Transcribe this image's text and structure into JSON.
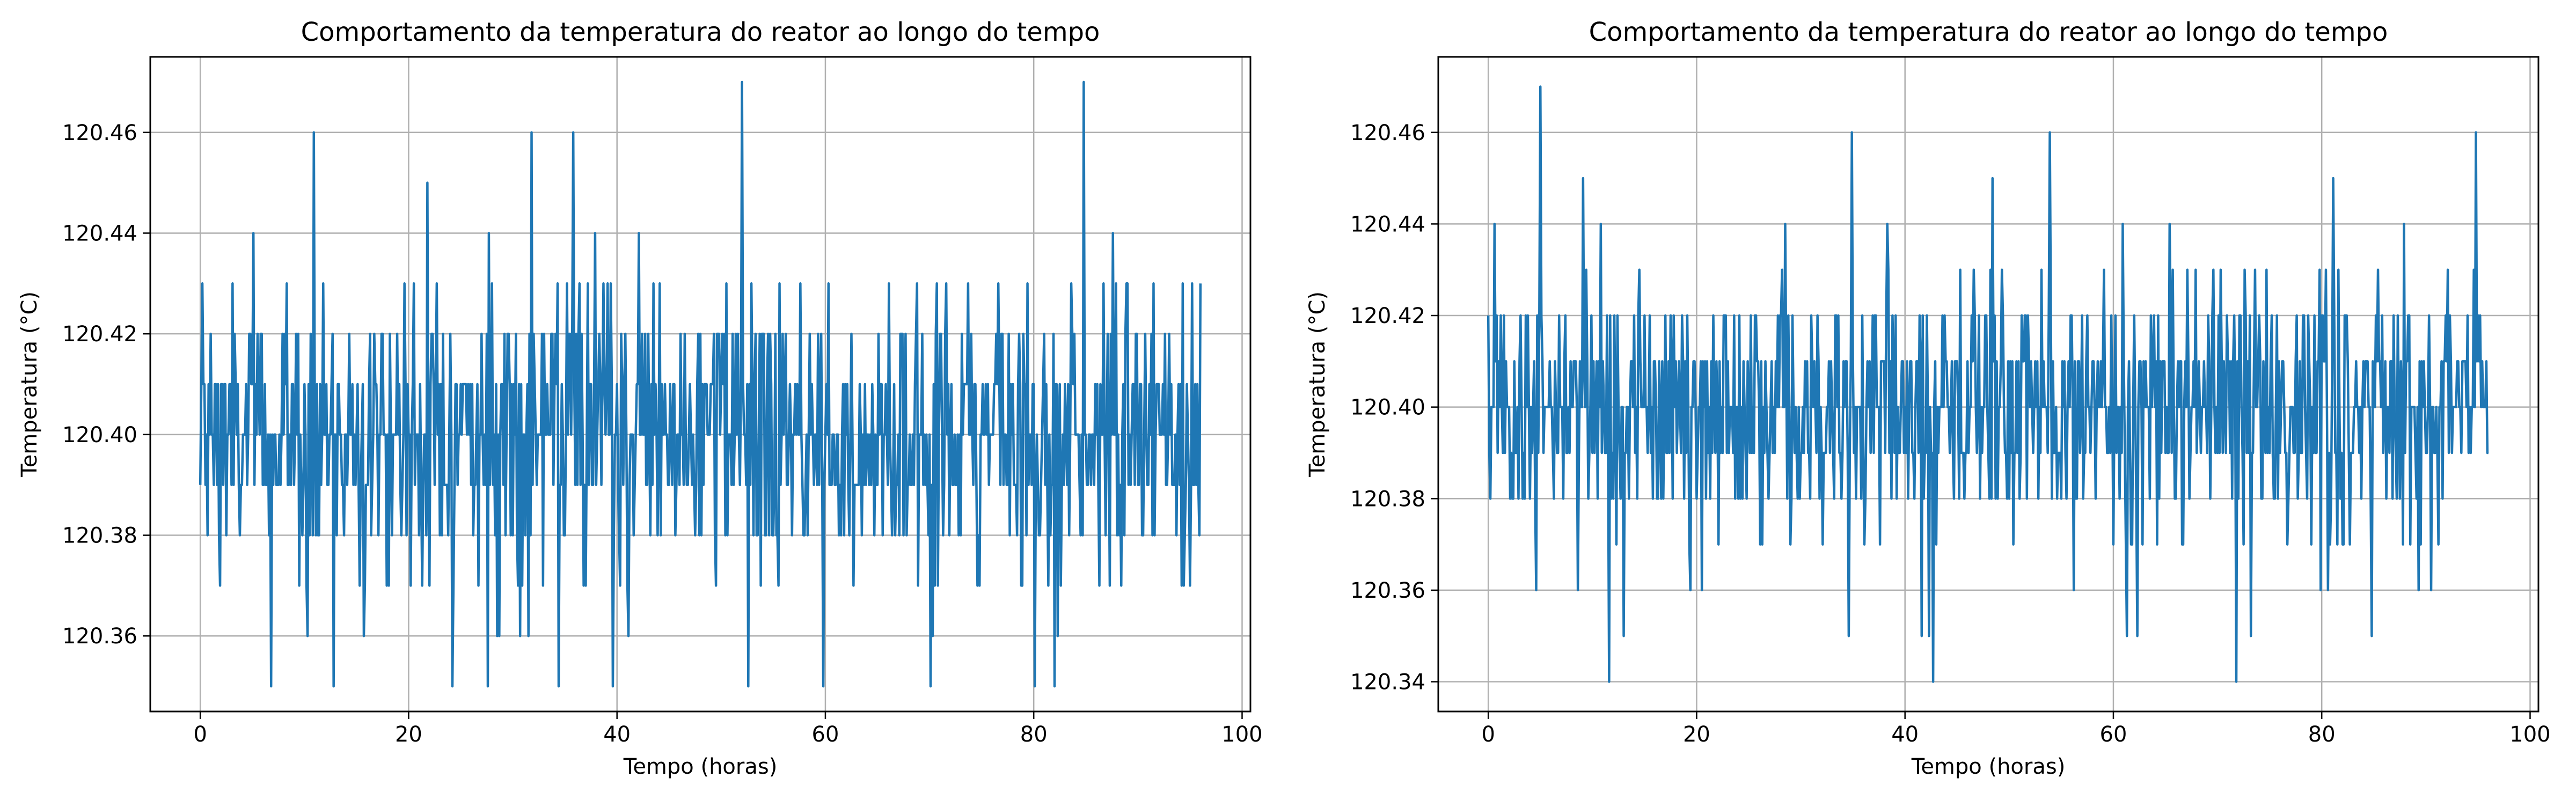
{
  "chart_data": [
    {
      "type": "line",
      "title": "Comportamento da temperatura do reator ao longo do tempo",
      "xlabel": "Tempo (horas)",
      "ylabel": "Temperatura (°C)",
      "xlim": [
        -4.8,
        100.8
      ],
      "ylim": [
        120.345,
        120.475
      ],
      "xticks": [
        0,
        20,
        40,
        60,
        80,
        100
      ],
      "xtick_labels": [
        "0",
        "20",
        "40",
        "60",
        "80",
        "100"
      ],
      "yticks": [
        120.36,
        120.38,
        120.4,
        120.42,
        120.44,
        120.46
      ],
      "ytick_labels": [
        "120.36",
        "120.38",
        "120.40",
        "120.42",
        "120.44",
        "120.46"
      ],
      "grid": true,
      "line_color": "#1f77b4",
      "x_range": [
        0,
        96
      ],
      "sample_step_hours": 0.1,
      "series": [
        {
          "name": "",
          "mean": 120.4,
          "min": 120.35,
          "max": 120.47,
          "peaks": [
            {
              "x": 10.9,
              "y": 120.46
            },
            {
              "x": 21.8,
              "y": 120.45
            },
            {
              "x": 31.8,
              "y": 120.46
            },
            {
              "x": 35.8,
              "y": 120.46
            },
            {
              "x": 52.0,
              "y": 120.47
            },
            {
              "x": 84.8,
              "y": 120.47
            },
            {
              "x": 6.8,
              "y": 120.35
            },
            {
              "x": 12.8,
              "y": 120.35
            },
            {
              "x": 24.2,
              "y": 120.35
            },
            {
              "x": 27.6,
              "y": 120.35
            },
            {
              "x": 34.4,
              "y": 120.35
            },
            {
              "x": 39.6,
              "y": 120.35
            },
            {
              "x": 52.6,
              "y": 120.35
            },
            {
              "x": 59.8,
              "y": 120.35
            },
            {
              "x": 70.1,
              "y": 120.35
            },
            {
              "x": 80.1,
              "y": 120.35
            },
            {
              "x": 82.0,
              "y": 120.35
            }
          ]
        }
      ]
    },
    {
      "type": "line",
      "title": "Comportamento da temperatura do reator ao longo do tempo",
      "xlabel": "Tempo (horas)",
      "ylabel": "Temperatura (°C)",
      "xlim": [
        -4.8,
        100.8
      ],
      "ylim": [
        120.3335,
        120.4765
      ],
      "xticks": [
        0,
        20,
        40,
        60,
        80,
        100
      ],
      "xtick_labels": [
        "0",
        "20",
        "40",
        "60",
        "80",
        "100"
      ],
      "yticks": [
        120.34,
        120.36,
        120.38,
        120.4,
        120.42,
        120.44,
        120.46
      ],
      "ytick_labels": [
        "120.34",
        "120.36",
        "120.38",
        "120.40",
        "120.42",
        "120.44",
        "120.46"
      ],
      "grid": true,
      "line_color": "#1f77b4",
      "x_range": [
        0,
        96
      ],
      "sample_step_hours": 0.1,
      "series": [
        {
          "name": "",
          "mean": 120.4,
          "min": 120.34,
          "max": 120.47,
          "peaks": [
            {
              "x": 5.0,
              "y": 120.47
            },
            {
              "x": 34.9,
              "y": 120.46
            },
            {
              "x": 53.9,
              "y": 120.46
            },
            {
              "x": 94.8,
              "y": 120.46
            },
            {
              "x": 9.1,
              "y": 120.45
            },
            {
              "x": 11.6,
              "y": 120.34
            },
            {
              "x": 42.7,
              "y": 120.34
            },
            {
              "x": 71.8,
              "y": 120.34
            },
            {
              "x": 13.0,
              "y": 120.35
            },
            {
              "x": 34.6,
              "y": 120.35
            },
            {
              "x": 41.6,
              "y": 120.35
            },
            {
              "x": 42.3,
              "y": 120.35
            },
            {
              "x": 61.3,
              "y": 120.35
            },
            {
              "x": 62.3,
              "y": 120.35
            },
            {
              "x": 73.2,
              "y": 120.35
            },
            {
              "x": 84.8,
              "y": 120.35
            }
          ]
        }
      ]
    }
  ]
}
